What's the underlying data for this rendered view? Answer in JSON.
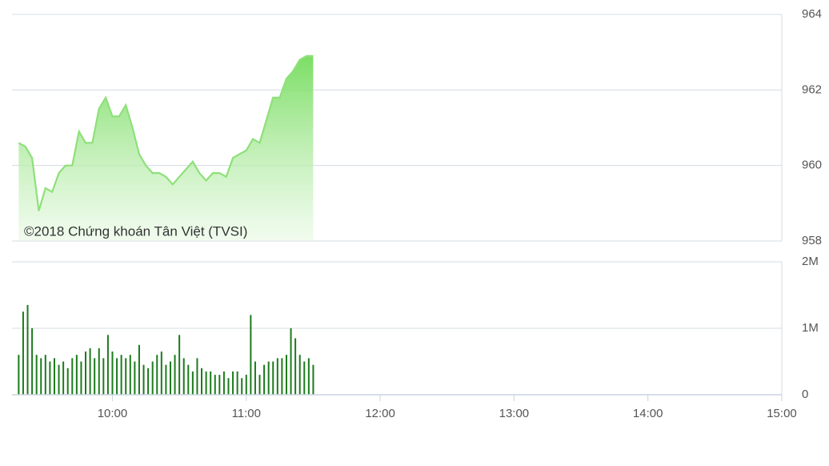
{
  "chart_data": [
    {
      "type": "area",
      "annotation": "©2018 Chứng khoán Tân Việt (TVSI)",
      "color": "#8ee07a",
      "x": [
        "09:18",
        "09:21",
        "09:24",
        "09:27",
        "09:30",
        "09:33",
        "09:36",
        "09:39",
        "09:42",
        "09:45",
        "09:48",
        "09:51",
        "09:54",
        "09:57",
        "10:00",
        "10:03",
        "10:06",
        "10:09",
        "10:12",
        "10:15",
        "10:18",
        "10:21",
        "10:24",
        "10:27",
        "10:30",
        "10:33",
        "10:36",
        "10:39",
        "10:42",
        "10:45",
        "10:48",
        "10:51",
        "10:54",
        "10:57",
        "11:00",
        "11:03",
        "11:06",
        "11:09",
        "11:12",
        "11:15",
        "11:18",
        "11:21",
        "11:24",
        "11:27",
        "11:30"
      ],
      "values": [
        960.6,
        960.5,
        960.2,
        958.8,
        959.4,
        959.3,
        959.8,
        960.0,
        960.0,
        960.9,
        960.6,
        960.6,
        961.5,
        961.8,
        961.3,
        961.3,
        961.6,
        961.0,
        960.3,
        960.0,
        959.8,
        959.8,
        959.7,
        959.5,
        959.7,
        959.9,
        960.1,
        959.8,
        959.6,
        959.8,
        959.8,
        959.7,
        960.2,
        960.3,
        960.4,
        960.7,
        960.6,
        961.2,
        961.8,
        961.8,
        962.3,
        962.5,
        962.8,
        962.9,
        962.9
      ],
      "xlim": [
        "09:15",
        "15:00"
      ],
      "ylim": [
        958,
        964
      ],
      "yticks": [
        958,
        960,
        962,
        964
      ],
      "grid": true
    },
    {
      "type": "bar",
      "color": "#1c7a1c",
      "x": [
        "09:18",
        "09:20",
        "09:22",
        "09:24",
        "09:26",
        "09:28",
        "09:30",
        "09:32",
        "09:34",
        "09:36",
        "09:38",
        "09:40",
        "09:42",
        "09:44",
        "09:46",
        "09:48",
        "09:50",
        "09:52",
        "09:54",
        "09:56",
        "09:58",
        "10:00",
        "10:02",
        "10:04",
        "10:06",
        "10:08",
        "10:10",
        "10:12",
        "10:14",
        "10:16",
        "10:18",
        "10:20",
        "10:22",
        "10:24",
        "10:26",
        "10:28",
        "10:30",
        "10:32",
        "10:34",
        "10:36",
        "10:38",
        "10:40",
        "10:42",
        "10:44",
        "10:46",
        "10:48",
        "10:50",
        "10:52",
        "10:54",
        "10:56",
        "10:58",
        "11:00",
        "11:02",
        "11:04",
        "11:06",
        "11:08",
        "11:10",
        "11:12",
        "11:14",
        "11:16",
        "11:18",
        "11:20",
        "11:22",
        "11:24",
        "11:26",
        "11:28",
        "11:30"
      ],
      "values": [
        600000,
        1250000,
        1350000,
        1000000,
        600000,
        550000,
        600000,
        500000,
        550000,
        450000,
        500000,
        400000,
        550000,
        600000,
        500000,
        650000,
        700000,
        550000,
        700000,
        550000,
        900000,
        650000,
        550000,
        600000,
        550000,
        600000,
        500000,
        750000,
        450000,
        400000,
        500000,
        600000,
        650000,
        450000,
        500000,
        600000,
        900000,
        550000,
        450000,
        350000,
        550000,
        400000,
        350000,
        350000,
        300000,
        300000,
        350000,
        250000,
        350000,
        350000,
        250000,
        300000,
        1200000,
        500000,
        300000,
        450000,
        500000,
        500000,
        550000,
        550000,
        600000,
        1000000,
        850000,
        600000,
        500000,
        550000,
        450000
      ],
      "xlim": [
        "09:15",
        "15:00"
      ],
      "xticks": [
        "10:00",
        "11:00",
        "12:00",
        "13:00",
        "14:00",
        "15:00"
      ],
      "ylim": [
        0,
        2000000
      ],
      "yticks": [
        0,
        {
          "value": 1000000,
          "label": "1M"
        },
        {
          "value": 2000000,
          "label": "2M"
        }
      ],
      "grid": true
    }
  ]
}
